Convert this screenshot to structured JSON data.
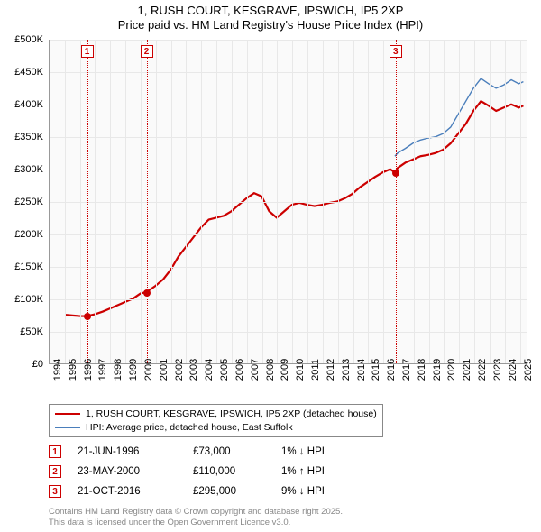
{
  "title": {
    "line1": "1, RUSH COURT, KESGRAVE, IPSWICH, IP5 2XP",
    "line2": "Price paid vs. HM Land Registry's House Price Index (HPI)",
    "fontsize": 13,
    "color": "#000000"
  },
  "chart": {
    "type": "line",
    "background_color": "#fafafa",
    "grid_color": "#e8e8e8",
    "axis_color": "#999999",
    "xlim": [
      1994,
      2025.5
    ],
    "ylim": [
      0,
      500000
    ],
    "ytick_step": 50000,
    "ytick_labels": [
      "£0",
      "£50K",
      "£100K",
      "£150K",
      "£200K",
      "£250K",
      "£300K",
      "£350K",
      "£400K",
      "£450K",
      "£500K"
    ],
    "xtick_step": 1,
    "xtick_labels": [
      "1994",
      "1995",
      "1996",
      "1997",
      "1998",
      "1999",
      "2000",
      "2001",
      "2002",
      "2003",
      "2004",
      "2005",
      "2006",
      "2007",
      "2008",
      "2009",
      "2010",
      "2011",
      "2012",
      "2013",
      "2014",
      "2015",
      "2016",
      "2017",
      "2018",
      "2019",
      "2020",
      "2021",
      "2022",
      "2023",
      "2024",
      "2025"
    ],
    "label_fontsize": 11,
    "series": [
      {
        "name": "price_paid",
        "label": "1, RUSH COURT, KESGRAVE, IPSWICH, IP5 2XP (detached house)",
        "color": "#cc0000",
        "line_width": 2.2,
        "data": [
          [
            1995.0,
            75000
          ],
          [
            1995.5,
            74000
          ],
          [
            1996.0,
            73000
          ],
          [
            1996.47,
            73000
          ],
          [
            1997.0,
            76000
          ],
          [
            1997.5,
            80000
          ],
          [
            1998.0,
            85000
          ],
          [
            1998.5,
            90000
          ],
          [
            1999.0,
            95000
          ],
          [
            1999.5,
            100000
          ],
          [
            2000.0,
            108000
          ],
          [
            2000.39,
            110000
          ],
          [
            2001.0,
            120000
          ],
          [
            2001.5,
            130000
          ],
          [
            2002.0,
            145000
          ],
          [
            2002.5,
            165000
          ],
          [
            2003.0,
            180000
          ],
          [
            2003.5,
            195000
          ],
          [
            2004.0,
            210000
          ],
          [
            2004.5,
            222000
          ],
          [
            2005.0,
            225000
          ],
          [
            2005.5,
            228000
          ],
          [
            2006.0,
            235000
          ],
          [
            2006.5,
            245000
          ],
          [
            2007.0,
            255000
          ],
          [
            2007.5,
            263000
          ],
          [
            2008.0,
            258000
          ],
          [
            2008.5,
            235000
          ],
          [
            2009.0,
            225000
          ],
          [
            2009.5,
            235000
          ],
          [
            2010.0,
            245000
          ],
          [
            2010.5,
            248000
          ],
          [
            2011.0,
            245000
          ],
          [
            2011.5,
            243000
          ],
          [
            2012.0,
            245000
          ],
          [
            2012.5,
            248000
          ],
          [
            2013.0,
            250000
          ],
          [
            2013.5,
            255000
          ],
          [
            2014.0,
            262000
          ],
          [
            2014.5,
            272000
          ],
          [
            2015.0,
            280000
          ],
          [
            2015.5,
            288000
          ],
          [
            2016.0,
            295000
          ],
          [
            2016.5,
            300000
          ],
          [
            2016.81,
            295000
          ],
          [
            2017.0,
            302000
          ],
          [
            2017.5,
            310000
          ],
          [
            2018.0,
            315000
          ],
          [
            2018.5,
            320000
          ],
          [
            2019.0,
            322000
          ],
          [
            2019.5,
            325000
          ],
          [
            2020.0,
            330000
          ],
          [
            2020.5,
            340000
          ],
          [
            2021.0,
            355000
          ],
          [
            2021.5,
            370000
          ],
          [
            2022.0,
            390000
          ],
          [
            2022.5,
            405000
          ],
          [
            2023.0,
            398000
          ],
          [
            2023.5,
            390000
          ],
          [
            2024.0,
            395000
          ],
          [
            2024.5,
            400000
          ],
          [
            2025.0,
            395000
          ],
          [
            2025.3,
            398000
          ]
        ]
      },
      {
        "name": "hpi",
        "label": "HPI: Average price, detached house, East Suffolk",
        "color": "#4a7ebb",
        "line_width": 1.4,
        "data": [
          [
            2016.81,
            320000
          ],
          [
            2017.0,
            325000
          ],
          [
            2017.5,
            332000
          ],
          [
            2018.0,
            340000
          ],
          [
            2018.5,
            345000
          ],
          [
            2019.0,
            348000
          ],
          [
            2019.5,
            350000
          ],
          [
            2020.0,
            355000
          ],
          [
            2020.5,
            365000
          ],
          [
            2021.0,
            385000
          ],
          [
            2021.5,
            405000
          ],
          [
            2022.0,
            425000
          ],
          [
            2022.5,
            440000
          ],
          [
            2023.0,
            432000
          ],
          [
            2023.5,
            425000
          ],
          [
            2024.0,
            430000
          ],
          [
            2024.5,
            438000
          ],
          [
            2025.0,
            432000
          ],
          [
            2025.3,
            435000
          ]
        ]
      }
    ],
    "markers": [
      {
        "id": "1",
        "x": 1996.47,
        "y": 73000,
        "date": "21-JUN-1996",
        "price": "£73,000",
        "pct": "1% ↓ HPI"
      },
      {
        "id": "2",
        "x": 2000.39,
        "y": 110000,
        "date": "23-MAY-2000",
        "price": "£110,000",
        "pct": "1% ↑ HPI"
      },
      {
        "id": "3",
        "x": 2016.81,
        "y": 295000,
        "date": "21-OCT-2016",
        "price": "£295,000",
        "pct": "9% ↓ HPI"
      }
    ],
    "marker_box_color": "#cc0000",
    "marker_line_style": "dotted"
  },
  "footer": {
    "line1": "Contains HM Land Registry data © Crown copyright and database right 2025.",
    "line2": "This data is licensed under the Open Government Licence v3.0.",
    "color": "#888888",
    "fontsize": 9.5
  }
}
